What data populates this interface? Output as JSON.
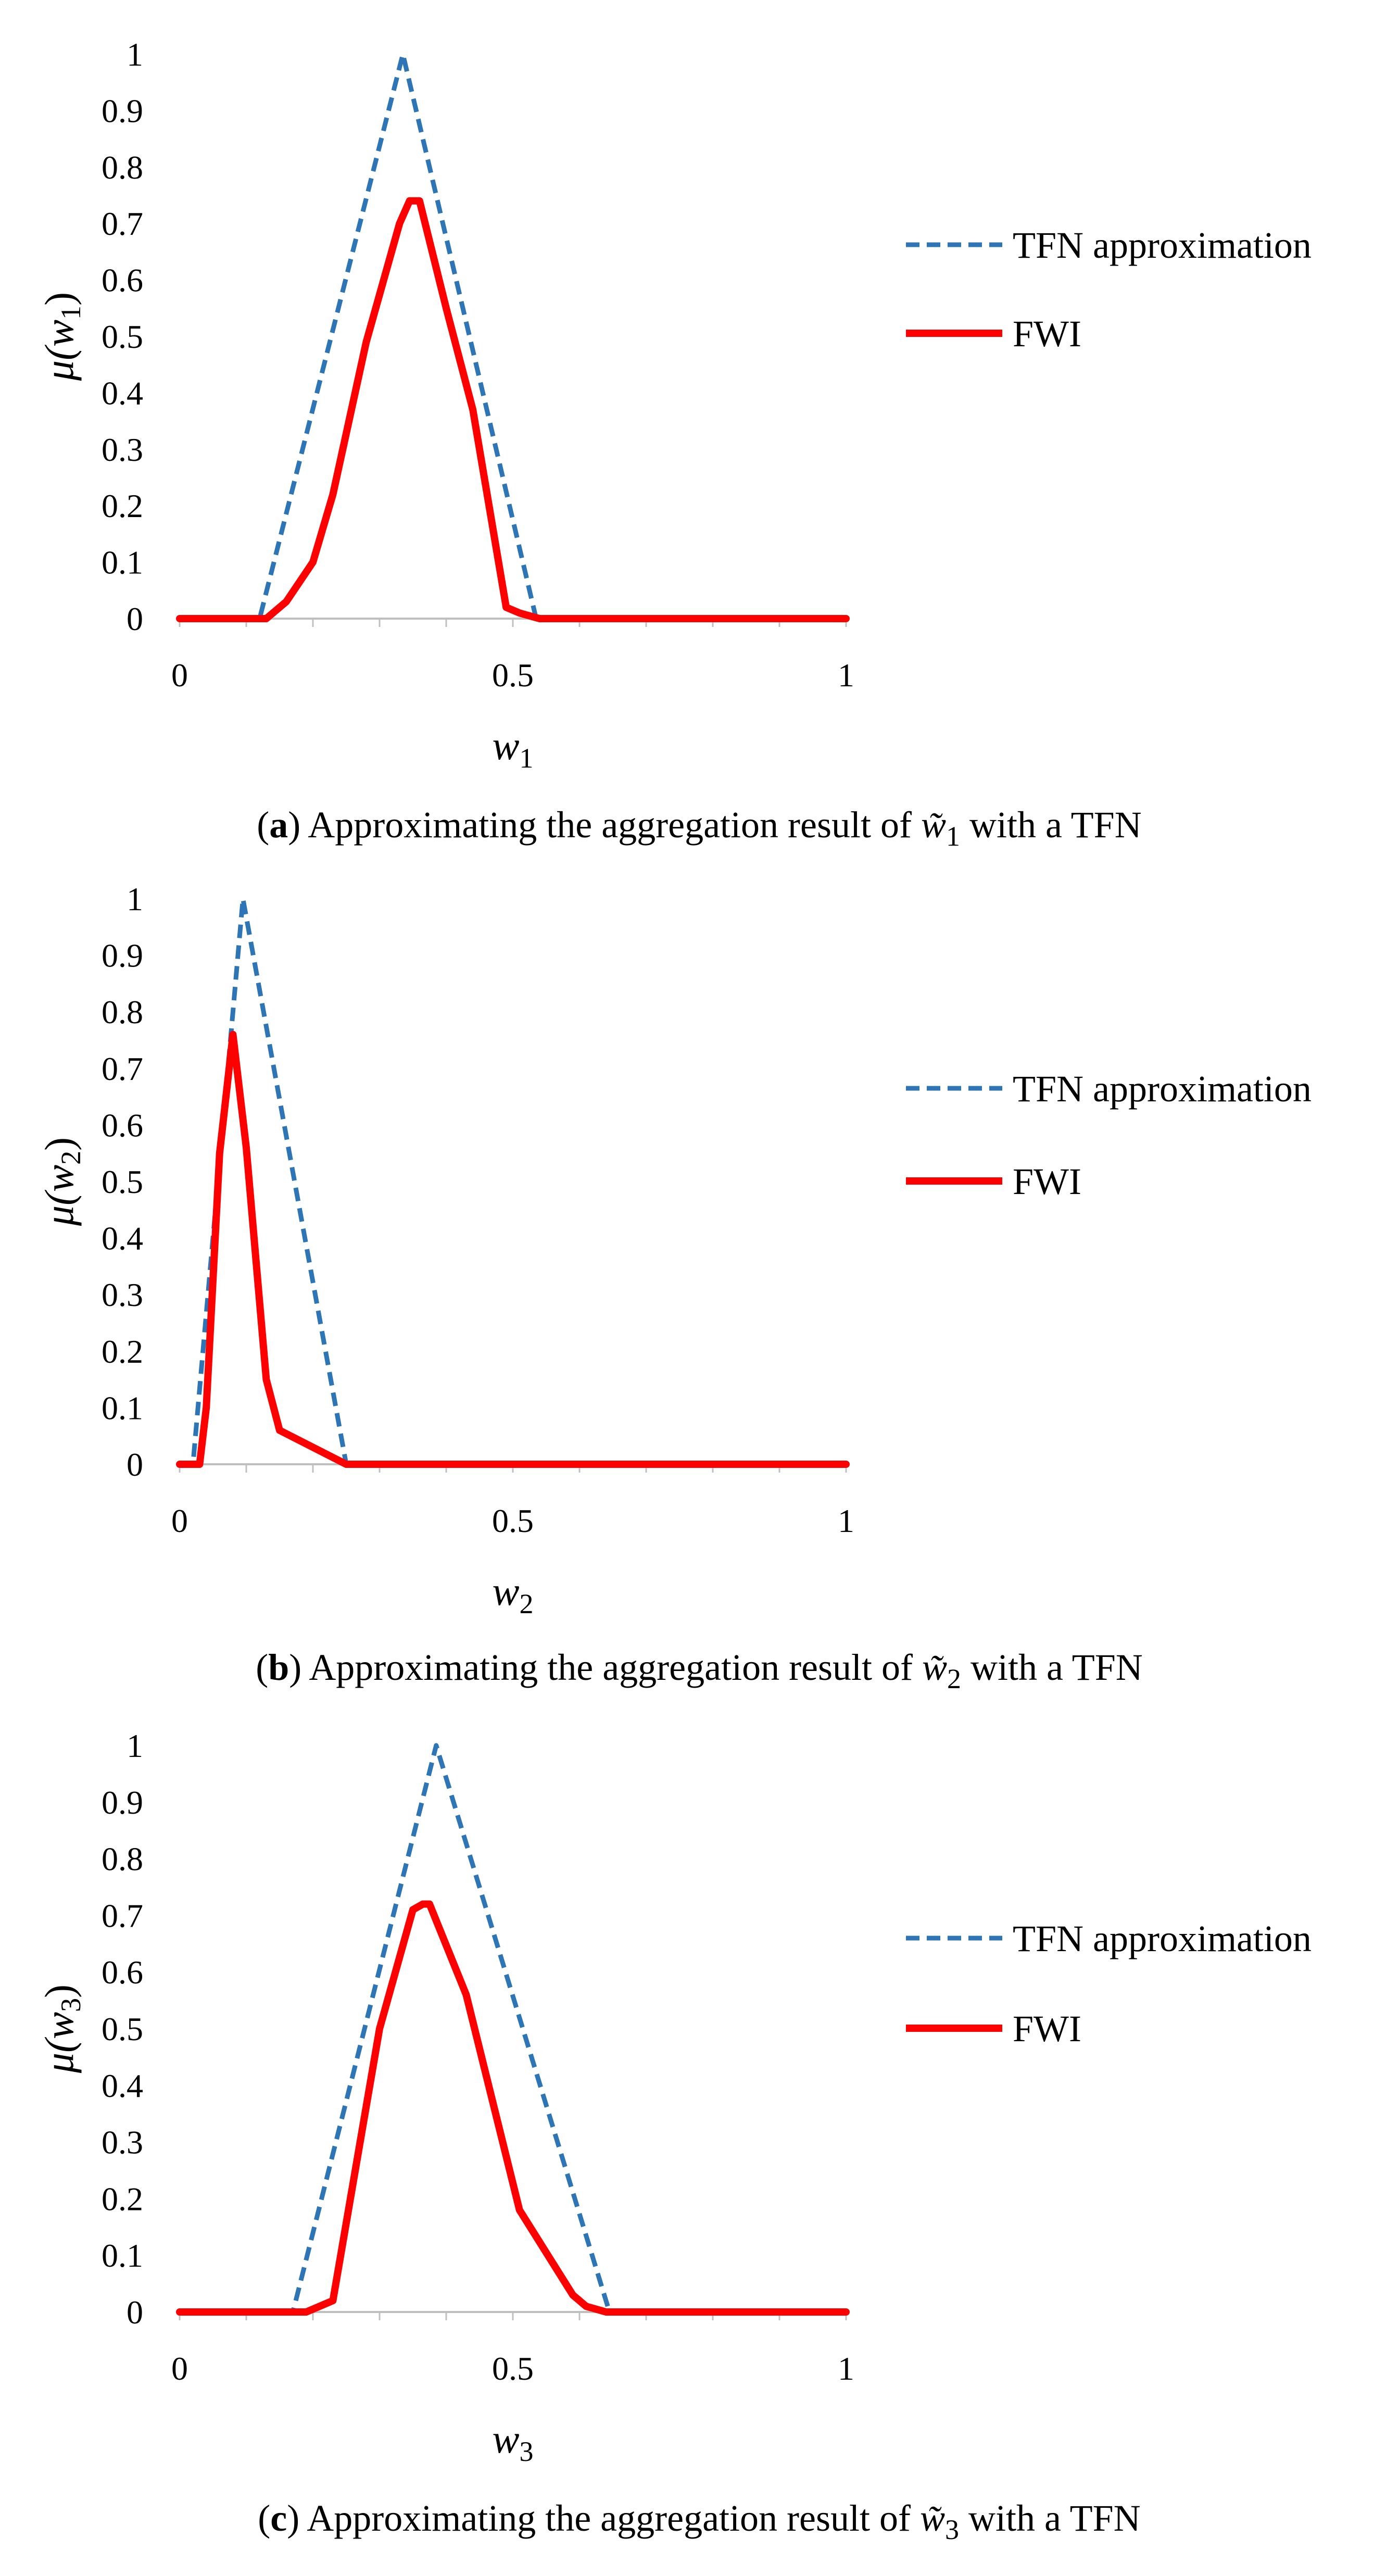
{
  "figure": {
    "panels": [
      {
        "panel_label": "a",
        "caption_prefix": "Approximating the aggregation result of",
        "caption_symbol": "w̃",
        "caption_subscript": "1",
        "caption_suffix": "with a TFN",
        "y_label_symbol": "μ(w",
        "y_label_subscript": "1",
        "y_label_close": ")",
        "x_label_symbol": "w",
        "x_label_subscript": "1"
      },
      {
        "panel_label": "b",
        "caption_prefix": "Approximating the aggregation result of",
        "caption_symbol": "w̃",
        "caption_subscript": "2",
        "caption_suffix": "with a TFN",
        "y_label_symbol": "μ(w",
        "y_label_subscript": "2",
        "y_label_close": ")",
        "x_label_symbol": "w",
        "x_label_subscript": "2"
      },
      {
        "panel_label": "c",
        "caption_prefix": "Approximating the aggregation result of",
        "caption_symbol": "w̃",
        "caption_subscript": "3",
        "caption_suffix": "with a TFN",
        "y_label_symbol": "μ(w",
        "y_label_subscript": "3",
        "y_label_close": ")",
        "x_label_symbol": "w",
        "x_label_subscript": "3"
      }
    ]
  },
  "chart_data": [
    {
      "type": "line",
      "title": "(a) Approximating the aggregation result of w̃1 with a TFN",
      "xlabel": "w1",
      "ylabel": "μ(w1)",
      "xlim": [
        0,
        1
      ],
      "ylim": [
        0,
        1
      ],
      "x_ticks": [
        "0",
        "0.5",
        "1"
      ],
      "y_ticks": [
        "0",
        "0.1",
        "0.2",
        "0.3",
        "0.4",
        "0.5",
        "0.6",
        "0.7",
        "0.8",
        "0.9",
        "1"
      ],
      "legend_position": "right",
      "series": [
        {
          "name": "TFN approximation",
          "style": "dashed",
          "color": "#2E75B6",
          "x": [
            0,
            0.12,
            0.335,
            0.535,
            1
          ],
          "y": [
            0,
            0,
            1,
            0,
            0
          ]
        },
        {
          "name": "FWI",
          "style": "solid",
          "color": "#FF0000",
          "x": [
            0,
            0.13,
            0.16,
            0.2,
            0.23,
            0.28,
            0.33,
            0.345,
            0.36,
            0.4,
            0.44,
            0.49,
            0.51,
            0.54,
            1
          ],
          "y": [
            0,
            0,
            0.03,
            0.1,
            0.22,
            0.49,
            0.7,
            0.74,
            0.74,
            0.55,
            0.37,
            0.02,
            0.01,
            0,
            0
          ]
        }
      ]
    },
    {
      "type": "line",
      "title": "(b) Approximating the aggregation result of w̃2 with a TFN",
      "xlabel": "w2",
      "ylabel": "μ(w2)",
      "xlim": [
        0,
        1
      ],
      "ylim": [
        0,
        1
      ],
      "x_ticks": [
        "0",
        "0.5",
        "1"
      ],
      "y_ticks": [
        "0",
        "0.1",
        "0.2",
        "0.3",
        "0.4",
        "0.5",
        "0.6",
        "0.7",
        "0.8",
        "0.9",
        "1"
      ],
      "legend_position": "right",
      "series": [
        {
          "name": "TFN approximation",
          "style": "dashed",
          "color": "#2E75B6",
          "x": [
            0,
            0.02,
            0.095,
            0.25,
            1
          ],
          "y": [
            0,
            0,
            1,
            0,
            0
          ]
        },
        {
          "name": "FWI",
          "style": "solid",
          "color": "#FF0000",
          "x": [
            0,
            0.03,
            0.04,
            0.06,
            0.08,
            0.1,
            0.13,
            0.15,
            0.25,
            1
          ],
          "y": [
            0,
            0,
            0.1,
            0.55,
            0.76,
            0.56,
            0.15,
            0.06,
            0,
            0
          ]
        }
      ]
    },
    {
      "type": "line",
      "title": "(c) Approximating the aggregation result of w̃3 with a TFN",
      "xlabel": "w3",
      "ylabel": "μ(w3)",
      "xlim": [
        0,
        1
      ],
      "ylim": [
        0,
        1
      ],
      "x_ticks": [
        "0",
        "0.5",
        "1"
      ],
      "y_ticks": [
        "0",
        "0.1",
        "0.2",
        "0.3",
        "0.4",
        "0.5",
        "0.6",
        "0.7",
        "0.8",
        "0.9",
        "1"
      ],
      "legend_position": "right",
      "series": [
        {
          "name": "TFN approximation",
          "style": "dashed",
          "color": "#2E75B6",
          "x": [
            0,
            0.17,
            0.385,
            0.645,
            1
          ],
          "y": [
            0,
            0,
            1,
            0,
            0
          ]
        },
        {
          "name": "FWI",
          "style": "solid",
          "color": "#FF0000",
          "x": [
            0,
            0.19,
            0.23,
            0.3,
            0.35,
            0.365,
            0.375,
            0.43,
            0.51,
            0.59,
            0.61,
            0.64,
            1
          ],
          "y": [
            0,
            0,
            0.02,
            0.5,
            0.71,
            0.72,
            0.72,
            0.56,
            0.18,
            0.03,
            0.01,
            0,
            0
          ]
        }
      ]
    }
  ]
}
